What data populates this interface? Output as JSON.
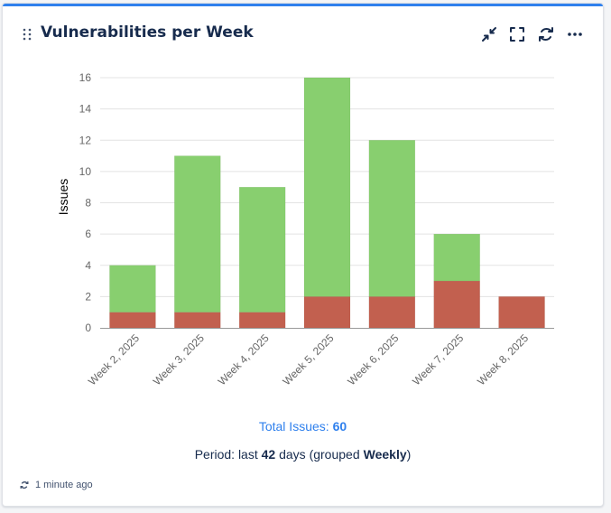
{
  "widget": {
    "title": "Vulnerabilities per Week",
    "total_label": "Total Issues:",
    "total_value": "60",
    "period_prefix": "Period: last",
    "period_days": "42",
    "period_mid": "days (grouped",
    "period_group": "Weekly",
    "period_suffix": ")",
    "updated": "1 minute ago",
    "icons": [
      "drag-handle-icon",
      "minimize-icon",
      "fullscreen-icon",
      "refresh-icon",
      "more-icon"
    ]
  },
  "colors": {
    "accent": "#2f80ed",
    "open": "#88cf6f",
    "fixed": "#c2604f",
    "grid": "#e3e3e3",
    "axis_text": "#666666"
  },
  "chart_data": {
    "type": "bar",
    "stacked": true,
    "categories": [
      "Week 2, 2025",
      "Week 3, 2025",
      "Week 4, 2025",
      "Week 5, 2025",
      "Week 6, 2025",
      "Week 7, 2025",
      "Week 8, 2025"
    ],
    "series": [
      {
        "name": "red",
        "color": "#c2604f",
        "values": [
          1,
          1,
          1,
          2,
          2,
          3,
          2
        ]
      },
      {
        "name": "green",
        "color": "#88cf6f",
        "values": [
          3,
          10,
          8,
          14,
          10,
          3,
          0
        ]
      }
    ],
    "ylabel": "Issues",
    "xlabel": "",
    "ylim": [
      0,
      16
    ],
    "yticks": [
      0,
      2,
      4,
      6,
      8,
      10,
      12,
      14,
      16
    ],
    "grid": true
  }
}
